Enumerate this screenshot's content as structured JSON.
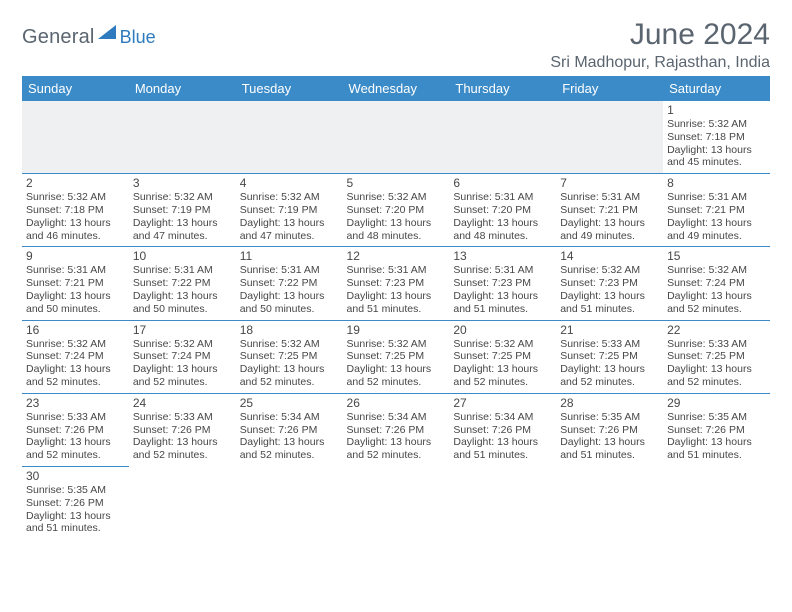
{
  "logo": {
    "part1": "General",
    "part2": "Blue"
  },
  "header": {
    "title": "June 2024",
    "location": "Sri Madhopur, Rajasthan, India"
  },
  "colors": {
    "header_bg": "#3b8bc9",
    "header_text": "#ffffff",
    "rule": "#3b8bc9",
    "body_text": "#474747",
    "logo_gray": "#5a6570",
    "logo_blue": "#2e7bbf"
  },
  "weekdays": [
    "Sunday",
    "Monday",
    "Tuesday",
    "Wednesday",
    "Thursday",
    "Friday",
    "Saturday"
  ],
  "weeks": [
    [
      null,
      null,
      null,
      null,
      null,
      null,
      {
        "n": "1",
        "sunrise": "5:32 AM",
        "sunset": "7:18 PM",
        "daylight": "13 hours and 45 minutes."
      }
    ],
    [
      {
        "n": "2",
        "sunrise": "5:32 AM",
        "sunset": "7:18 PM",
        "daylight": "13 hours and 46 minutes."
      },
      {
        "n": "3",
        "sunrise": "5:32 AM",
        "sunset": "7:19 PM",
        "daylight": "13 hours and 47 minutes."
      },
      {
        "n": "4",
        "sunrise": "5:32 AM",
        "sunset": "7:19 PM",
        "daylight": "13 hours and 47 minutes."
      },
      {
        "n": "5",
        "sunrise": "5:32 AM",
        "sunset": "7:20 PM",
        "daylight": "13 hours and 48 minutes."
      },
      {
        "n": "6",
        "sunrise": "5:31 AM",
        "sunset": "7:20 PM",
        "daylight": "13 hours and 48 minutes."
      },
      {
        "n": "7",
        "sunrise": "5:31 AM",
        "sunset": "7:21 PM",
        "daylight": "13 hours and 49 minutes."
      },
      {
        "n": "8",
        "sunrise": "5:31 AM",
        "sunset": "7:21 PM",
        "daylight": "13 hours and 49 minutes."
      }
    ],
    [
      {
        "n": "9",
        "sunrise": "5:31 AM",
        "sunset": "7:21 PM",
        "daylight": "13 hours and 50 minutes."
      },
      {
        "n": "10",
        "sunrise": "5:31 AM",
        "sunset": "7:22 PM",
        "daylight": "13 hours and 50 minutes."
      },
      {
        "n": "11",
        "sunrise": "5:31 AM",
        "sunset": "7:22 PM",
        "daylight": "13 hours and 50 minutes."
      },
      {
        "n": "12",
        "sunrise": "5:31 AM",
        "sunset": "7:23 PM",
        "daylight": "13 hours and 51 minutes."
      },
      {
        "n": "13",
        "sunrise": "5:31 AM",
        "sunset": "7:23 PM",
        "daylight": "13 hours and 51 minutes."
      },
      {
        "n": "14",
        "sunrise": "5:32 AM",
        "sunset": "7:23 PM",
        "daylight": "13 hours and 51 minutes."
      },
      {
        "n": "15",
        "sunrise": "5:32 AM",
        "sunset": "7:24 PM",
        "daylight": "13 hours and 52 minutes."
      }
    ],
    [
      {
        "n": "16",
        "sunrise": "5:32 AM",
        "sunset": "7:24 PM",
        "daylight": "13 hours and 52 minutes."
      },
      {
        "n": "17",
        "sunrise": "5:32 AM",
        "sunset": "7:24 PM",
        "daylight": "13 hours and 52 minutes."
      },
      {
        "n": "18",
        "sunrise": "5:32 AM",
        "sunset": "7:25 PM",
        "daylight": "13 hours and 52 minutes."
      },
      {
        "n": "19",
        "sunrise": "5:32 AM",
        "sunset": "7:25 PM",
        "daylight": "13 hours and 52 minutes."
      },
      {
        "n": "20",
        "sunrise": "5:32 AM",
        "sunset": "7:25 PM",
        "daylight": "13 hours and 52 minutes."
      },
      {
        "n": "21",
        "sunrise": "5:33 AM",
        "sunset": "7:25 PM",
        "daylight": "13 hours and 52 minutes."
      },
      {
        "n": "22",
        "sunrise": "5:33 AM",
        "sunset": "7:25 PM",
        "daylight": "13 hours and 52 minutes."
      }
    ],
    [
      {
        "n": "23",
        "sunrise": "5:33 AM",
        "sunset": "7:26 PM",
        "daylight": "13 hours and 52 minutes."
      },
      {
        "n": "24",
        "sunrise": "5:33 AM",
        "sunset": "7:26 PM",
        "daylight": "13 hours and 52 minutes."
      },
      {
        "n": "25",
        "sunrise": "5:34 AM",
        "sunset": "7:26 PM",
        "daylight": "13 hours and 52 minutes."
      },
      {
        "n": "26",
        "sunrise": "5:34 AM",
        "sunset": "7:26 PM",
        "daylight": "13 hours and 52 minutes."
      },
      {
        "n": "27",
        "sunrise": "5:34 AM",
        "sunset": "7:26 PM",
        "daylight": "13 hours and 51 minutes."
      },
      {
        "n": "28",
        "sunrise": "5:35 AM",
        "sunset": "7:26 PM",
        "daylight": "13 hours and 51 minutes."
      },
      {
        "n": "29",
        "sunrise": "5:35 AM",
        "sunset": "7:26 PM",
        "daylight": "13 hours and 51 minutes."
      }
    ],
    [
      {
        "n": "30",
        "sunrise": "5:35 AM",
        "sunset": "7:26 PM",
        "daylight": "13 hours and 51 minutes."
      },
      null,
      null,
      null,
      null,
      null,
      null
    ]
  ],
  "labels": {
    "sunrise": "Sunrise:",
    "sunset": "Sunset:",
    "daylight": "Daylight:"
  }
}
